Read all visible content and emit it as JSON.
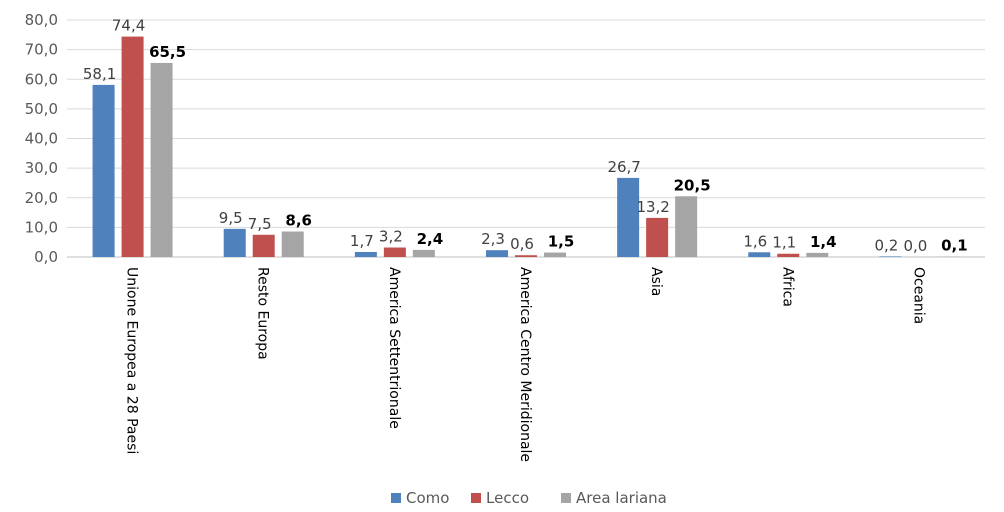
{
  "chart_data": {
    "type": "bar",
    "categories": [
      "Unione Europea a 28 Paesi",
      "Resto Europa",
      "America Settentrionale",
      "America Centro Meridionale",
      "Asia",
      "Africa",
      "Oceania"
    ],
    "series": [
      {
        "name": "Como",
        "color": "#4F81BD",
        "values": [
          58.1,
          9.5,
          1.7,
          2.3,
          26.7,
          1.6,
          0.2
        ],
        "labels": [
          "58,1",
          "9,5",
          "1,7",
          "2,3",
          "26,7",
          "1,6",
          "0,2"
        ]
      },
      {
        "name": "Lecco",
        "color": "#C0504D",
        "values": [
          74.4,
          7.5,
          3.2,
          0.6,
          13.2,
          1.1,
          0.0
        ],
        "labels": [
          "74,4",
          "7,5",
          "3,2",
          "0,6",
          "13,2",
          "1,1",
          "0,0"
        ]
      },
      {
        "name": "Area lariana",
        "color": "#A5A5A5",
        "values": [
          65.5,
          8.6,
          2.4,
          1.5,
          20.5,
          1.4,
          0.1
        ],
        "labels": [
          "65,5",
          "8,6",
          "2,4",
          "1,5",
          "20,5",
          "1,4",
          "0,1"
        ]
      }
    ],
    "yticks": [
      "0,0",
      "10,0",
      "20,0",
      "30,0",
      "40,0",
      "50,0",
      "60,0",
      "70,0",
      "80,0"
    ],
    "ylim": [
      0,
      80
    ],
    "grid": true,
    "legend": "bottom"
  }
}
